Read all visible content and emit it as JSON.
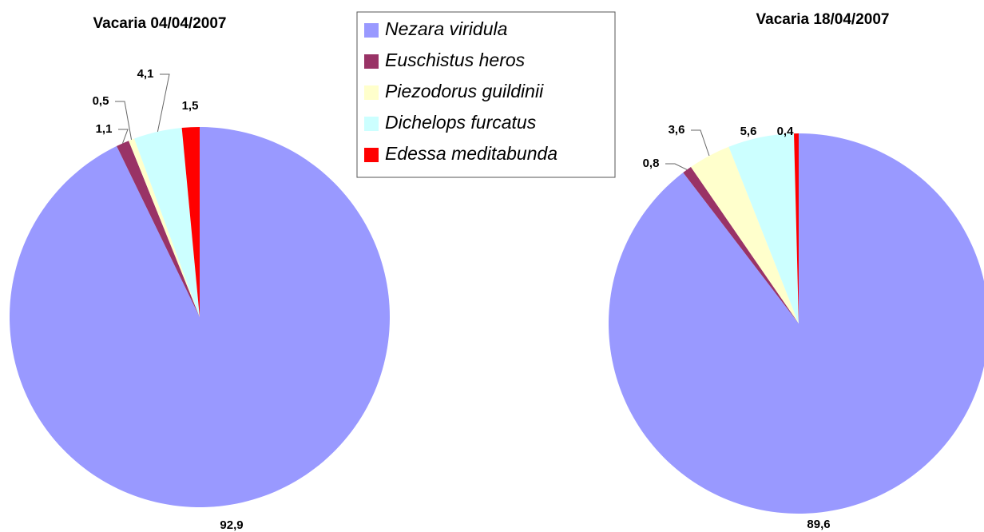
{
  "legend": {
    "labels": [
      "Nezara viridula",
      "Euschistus heros",
      "Piezodorus guildinii",
      "Dichelops furcatus",
      "Edessa meditabunda"
    ],
    "colors": [
      "#9999ff",
      "#993366",
      "#ffffcc",
      "#ccffff",
      "#ff0000"
    ]
  },
  "chart_data": [
    {
      "type": "pie",
      "title": "Vacaria 04/04/2007",
      "values": [
        92.9,
        1.1,
        0.5,
        4.1,
        1.5
      ],
      "value_labels": [
        "92,9",
        "1,1",
        "0,5",
        "4,1",
        "1,5"
      ]
    },
    {
      "type": "pie",
      "title": "Vacaria 18/04/2007",
      "values": [
        89.6,
        0.8,
        3.6,
        5.6,
        0.4
      ],
      "value_labels": [
        "89,6",
        "0,8",
        "3,6",
        "5,6",
        "0,4"
      ]
    }
  ]
}
